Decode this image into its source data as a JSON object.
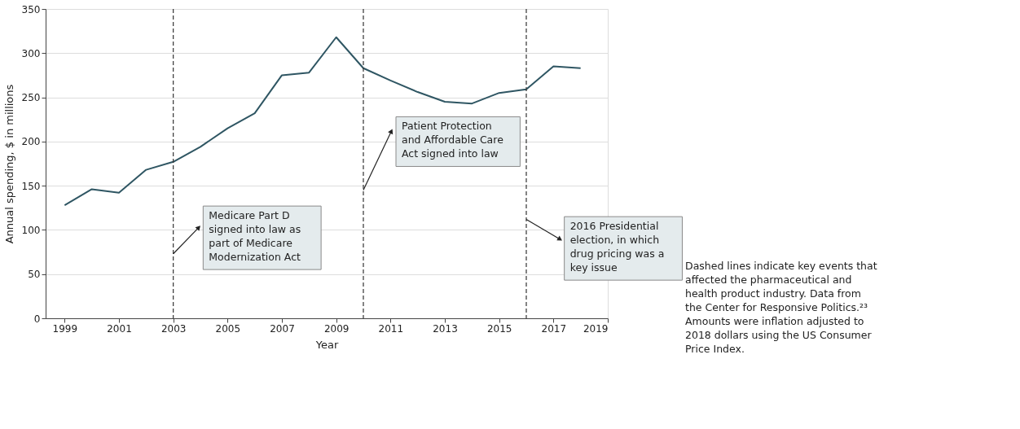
{
  "chart_data": {
    "type": "line",
    "xlabel": "Year",
    "ylabel": "Annual spending, $ in millions",
    "x": [
      1999,
      2000,
      2001,
      2002,
      2003,
      2004,
      2005,
      2006,
      2007,
      2008,
      2009,
      2010,
      2011,
      2012,
      2013,
      2014,
      2015,
      2016,
      2017,
      2018
    ],
    "series": [
      {
        "color": "#2f5663",
        "values": [
          128,
          146,
          142,
          168,
          177,
          194,
          215,
          232,
          275,
          278,
          318,
          283,
          269,
          256,
          245,
          243,
          255,
          259,
          285,
          283
        ]
      }
    ],
    "xlim": [
      1998.3,
      2019
    ],
    "xticks": [
      1999,
      2001,
      2003,
      2005,
      2007,
      2009,
      2011,
      2013,
      2015,
      2017,
      2019
    ],
    "ylim": [
      0,
      350
    ],
    "yticks": [
      0,
      50,
      100,
      150,
      200,
      250,
      300,
      350
    ],
    "grid": "y",
    "marker": "none",
    "line_style": "solid",
    "ref_lines": [
      {
        "axis": "x",
        "value": 2003,
        "label": "Medicare Part D signed into law as part of Medicare Modernization Act",
        "line_style": "dashed",
        "color": "#333333"
      },
      {
        "axis": "x",
        "value": 2010,
        "label": "Patient Protection and Affordable Care Act signed into law",
        "line_style": "dashed",
        "color": "#333333"
      },
      {
        "axis": "x",
        "value": 2016,
        "label": "2016 Presidential election, in which drug pricing was a key issue",
        "line_style": "dashed",
        "color": "#333333"
      }
    ],
    "annotations": [
      "Dashed lines indicate key events that affected the pharmaceutical and health product industry. Data from the Center for Responsive Politics.²³ Amounts were inflation adjusted to 2018 dollars using the US Consumer Price Index."
    ]
  }
}
